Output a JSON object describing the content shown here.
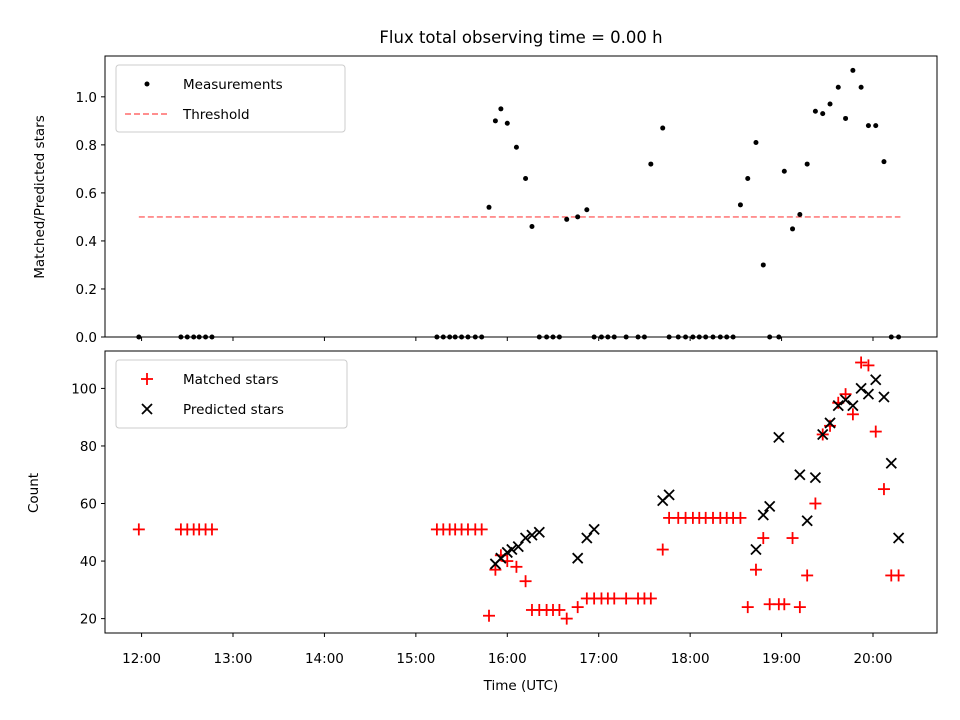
{
  "colors": {
    "measure": "#000000",
    "threshold": "#ff7f7f",
    "matched": "#ff0000",
    "predicted": "#000000"
  },
  "chart_data": [
    {
      "type": "scatter",
      "title": "Flux total observing time = 0.00 h",
      "xlabel": "",
      "ylabel": "Matched/Predicted stars",
      "xlim": [
        11.6,
        20.7
      ],
      "ylim": [
        0,
        1.17
      ],
      "x_tick_values": [
        12,
        13,
        14,
        15,
        16,
        17,
        18,
        19,
        20
      ],
      "y_ticks": [
        "0.0",
        "0.2",
        "0.4",
        "0.6",
        "0.8",
        "1.0"
      ],
      "y_tick_values": [
        0,
        0.2,
        0.4,
        0.6,
        0.8,
        1.0
      ],
      "legend": {
        "position": "top-left",
        "entries": [
          "Measurements",
          "Threshold"
        ]
      },
      "threshold": {
        "name": "Threshold",
        "value": 0.5,
        "x_range": [
          11.97,
          20.3
        ]
      },
      "series": [
        {
          "name": "Measurements",
          "x": [
            11.97,
            12.43,
            12.5,
            12.57,
            12.63,
            12.7,
            12.77,
            15.23,
            15.3,
            15.37,
            15.43,
            15.5,
            15.57,
            15.65,
            15.72,
            15.8,
            15.87,
            15.93,
            16.0,
            16.1,
            16.2,
            16.27,
            16.35,
            16.43,
            16.5,
            16.57,
            16.65,
            16.77,
            16.87,
            16.95,
            17.03,
            17.1,
            17.17,
            17.3,
            17.43,
            17.5,
            17.57,
            17.7,
            17.77,
            17.87,
            17.95,
            18.03,
            18.1,
            18.17,
            18.25,
            18.33,
            18.4,
            18.47,
            18.55,
            18.63,
            18.72,
            18.8,
            18.87,
            18.97,
            19.03,
            19.12,
            19.2,
            19.28,
            19.37,
            19.45,
            19.53,
            19.62,
            19.7,
            19.78,
            19.87,
            19.95,
            20.03,
            20.12,
            20.2,
            20.28
          ],
          "y": [
            0,
            0,
            0,
            0,
            0,
            0,
            0,
            0,
            0,
            0,
            0,
            0,
            0,
            0,
            0,
            0.54,
            0.9,
            0.95,
            0.89,
            0.79,
            0.66,
            0.46,
            0,
            0,
            0,
            0,
            0.49,
            0.5,
            0.53,
            0,
            0,
            0,
            0,
            0,
            0,
            0,
            0.72,
            0.87,
            0,
            0,
            0,
            0,
            0,
            0,
            0,
            0,
            0,
            0,
            0.55,
            0.66,
            0.81,
            0.3,
            0,
            0,
            0.69,
            0.45,
            0.51,
            0.72,
            0.94,
            0.93,
            0.97,
            1.04,
            0.91,
            1.11,
            1.04,
            0.88,
            0.88,
            0.73,
            0,
            0
          ]
        }
      ]
    },
    {
      "type": "scatter",
      "title": "",
      "xlabel": "Time (UTC)",
      "ylabel": "Count",
      "xlim": [
        11.6,
        20.7
      ],
      "ylim": [
        15,
        113
      ],
      "x_ticks": [
        "12:00",
        "13:00",
        "14:00",
        "15:00",
        "16:00",
        "17:00",
        "18:00",
        "19:00",
        "20:00"
      ],
      "x_tick_values": [
        12,
        13,
        14,
        15,
        16,
        17,
        18,
        19,
        20
      ],
      "y_ticks": [
        "20",
        "40",
        "60",
        "80",
        "100"
      ],
      "y_tick_values": [
        20,
        40,
        60,
        80,
        100
      ],
      "legend": {
        "position": "top-left",
        "entries": [
          "Matched stars",
          "Predicted stars"
        ]
      },
      "series": [
        {
          "name": "Matched stars",
          "marker": "+",
          "x": [
            11.97,
            12.43,
            12.5,
            12.57,
            12.63,
            12.7,
            12.77,
            15.23,
            15.3,
            15.37,
            15.43,
            15.5,
            15.57,
            15.65,
            15.72,
            15.8,
            15.87,
            15.93,
            16.0,
            16.1,
            16.2,
            16.27,
            16.35,
            16.43,
            16.5,
            16.57,
            16.65,
            16.77,
            16.87,
            16.95,
            17.03,
            17.1,
            17.17,
            17.3,
            17.43,
            17.5,
            17.57,
            17.7,
            17.77,
            17.87,
            17.95,
            18.03,
            18.1,
            18.17,
            18.25,
            18.33,
            18.4,
            18.47,
            18.55,
            18.63,
            18.72,
            18.8,
            18.87,
            18.97,
            19.03,
            19.12,
            19.2,
            19.28,
            19.37,
            19.45,
            19.53,
            19.62,
            19.7,
            19.78,
            19.87,
            19.95,
            20.03,
            20.12,
            20.2,
            20.28
          ],
          "y": [
            51,
            51,
            51,
            51,
            51,
            51,
            51,
            51,
            51,
            51,
            51,
            51,
            51,
            51,
            51,
            21,
            37,
            42,
            40,
            38,
            33,
            23,
            23,
            23,
            23,
            23,
            20,
            24,
            27,
            27,
            27,
            27,
            27,
            27,
            27,
            27,
            27,
            44,
            55,
            55,
            55,
            55,
            55,
            55,
            55,
            55,
            55,
            55,
            55,
            24,
            37,
            48,
            25,
            25,
            25,
            48,
            24,
            35,
            60,
            84,
            87,
            95,
            98,
            91,
            109,
            108,
            85,
            65,
            35,
            35
          ]
        },
        {
          "name": "Predicted stars",
          "marker": "x",
          "x": [
            15.87,
            15.93,
            16.0,
            16.05,
            16.12,
            16.2,
            16.27,
            16.35,
            16.77,
            16.87,
            16.95,
            17.7,
            17.77,
            18.72,
            18.8,
            18.87,
            18.97,
            19.2,
            19.28,
            19.37,
            19.45,
            19.53,
            19.62,
            19.7,
            19.78,
            19.87,
            19.95,
            20.03,
            20.12,
            20.2,
            20.28
          ],
          "y": [
            39,
            41,
            43,
            44,
            45,
            48,
            49,
            50,
            41,
            48,
            51,
            61,
            63,
            44,
            56,
            59,
            83,
            70,
            54,
            69,
            84,
            88,
            94,
            96,
            94,
            100,
            98,
            103,
            97,
            74,
            48
          ]
        }
      ]
    }
  ]
}
